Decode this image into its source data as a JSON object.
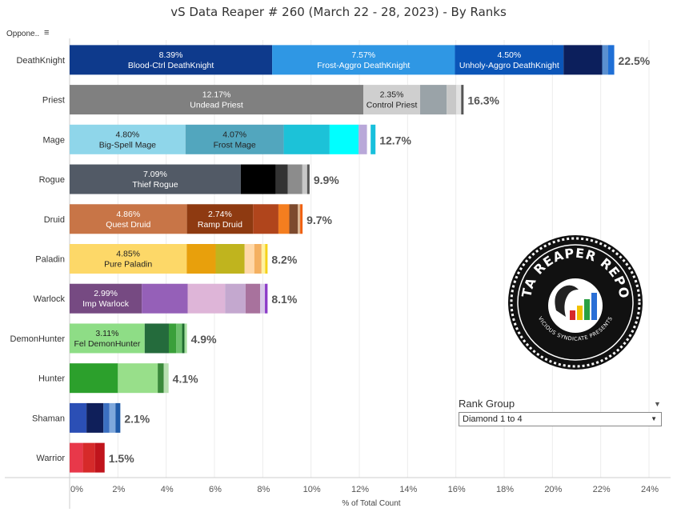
{
  "title": "vS Data Reaper #  260 (March 22 - 28, 2023) - By Ranks",
  "sort_label": "Oppone..",
  "rank_group": {
    "label": "Rank Group",
    "selected": "Diamond 1 to 4"
  },
  "logo": {
    "text": "DATA REAPER REPORT",
    "subtext": "VICIOUS SYNDICATE PRESENTS"
  },
  "chart_data": {
    "type": "bar",
    "orientation": "horizontal",
    "stacked": true,
    "xlabel": "% of Total Count",
    "xlim": [
      0,
      24
    ],
    "xticks": [
      "0%",
      "2%",
      "4%",
      "6%",
      "8%",
      "10%",
      "12%",
      "14%",
      "16%",
      "18%",
      "20%",
      "22%",
      "24%"
    ],
    "grid": true,
    "rows": [
      {
        "class": "DeathKnight",
        "total": "22.5%",
        "segments": [
          {
            "value": 8.39,
            "color": "#0e3a8c",
            "pct": "8.39%",
            "name": "Blood-Ctrl DeathKnight",
            "textColor": "#ffffff"
          },
          {
            "value": 7.57,
            "color": "#2f97e4",
            "pct": "7.57%",
            "name": "Frost-Aggro DeathKnight",
            "textColor": "#ffffff"
          },
          {
            "value": 4.5,
            "color": "#0b55b8",
            "pct": "4.50%",
            "name": "Unholy-Aggro DeathKnight",
            "textColor": "#ffffff"
          },
          {
            "value": 1.6,
            "color": "#0c1f5c"
          },
          {
            "value": 0.25,
            "color": "#5a8fd0"
          },
          {
            "value": 0.25,
            "color": "#1f6fd6"
          }
        ]
      },
      {
        "class": "Priest",
        "total": "16.3%",
        "segments": [
          {
            "value": 12.17,
            "color": "#808080",
            "pct": "12.17%",
            "name": "Undead Priest",
            "textColor": "#ffffff"
          },
          {
            "value": 2.35,
            "color": "#cfcfcf",
            "pct": "2.35%",
            "name": "Control Priest",
            "textColor": "#222222"
          },
          {
            "value": 1.1,
            "color": "#9aa3a8"
          },
          {
            "value": 0.4,
            "color": "#c8c8c8"
          },
          {
            "value": 0.2,
            "color": "#e2e2e2"
          },
          {
            "value": 0.1,
            "color": "#555555"
          }
        ]
      },
      {
        "class": "Mage",
        "total": "12.7%",
        "segments": [
          {
            "value": 4.8,
            "color": "#8fd6ea",
            "pct": "4.80%",
            "name": "Big-Spell Mage",
            "textColor": "#222222"
          },
          {
            "value": 4.07,
            "color": "#52a6be",
            "pct": "4.07%",
            "name": "Frost Mage",
            "textColor": "#222222"
          },
          {
            "value": 1.9,
            "color": "#1cc2d8"
          },
          {
            "value": 1.2,
            "color": "#00ffff"
          },
          {
            "value": 0.35,
            "color": "#b9a8d9"
          },
          {
            "value": 0.15,
            "color": "#ffffff"
          },
          {
            "value": 0.2,
            "color": "#18c0dc"
          }
        ]
      },
      {
        "class": "Rogue",
        "total": "9.9%",
        "segments": [
          {
            "value": 7.09,
            "color": "#525a66",
            "pct": "7.09%",
            "name": "Thief Rogue",
            "textColor": "#ffffff"
          },
          {
            "value": 1.45,
            "color": "#000000"
          },
          {
            "value": 0.5,
            "color": "#333333"
          },
          {
            "value": 0.6,
            "color": "#8c8c8c"
          },
          {
            "value": 0.2,
            "color": "#c7c7c7"
          },
          {
            "value": 0.1,
            "color": "#555555"
          }
        ]
      },
      {
        "class": "Druid",
        "total": "9.7%",
        "segments": [
          {
            "value": 4.86,
            "color": "#c87547",
            "pct": "4.86%",
            "name": "Quest Druid",
            "textColor": "#ffffff"
          },
          {
            "value": 2.74,
            "color": "#8e3a11",
            "pct": "2.74%",
            "name": "Ramp Druid",
            "textColor": "#ffffff"
          },
          {
            "value": 1.05,
            "color": "#b0451c"
          },
          {
            "value": 0.45,
            "color": "#f47e1f"
          },
          {
            "value": 0.35,
            "color": "#7d4a2e"
          },
          {
            "value": 0.1,
            "color": "#d9b28f"
          },
          {
            "value": 0.1,
            "color": "#f06010"
          }
        ]
      },
      {
        "class": "Paladin",
        "total": "8.2%",
        "segments": [
          {
            "value": 4.85,
            "color": "#fdd868",
            "pct": "4.85%",
            "name": "Pure Paladin",
            "textColor": "#222222"
          },
          {
            "value": 1.2,
            "color": "#e8a00c"
          },
          {
            "value": 1.2,
            "color": "#c0b41e"
          },
          {
            "value": 0.4,
            "color": "#ffd8a8"
          },
          {
            "value": 0.3,
            "color": "#f4b060"
          },
          {
            "value": 0.15,
            "color": "#fff2a0"
          },
          {
            "value": 0.1,
            "color": "#f5d21a"
          }
        ]
      },
      {
        "class": "Warlock",
        "total": "8.1%",
        "segments": [
          {
            "value": 2.99,
            "color": "#764a82",
            "pct": "2.99%",
            "name": "Imp Warlock",
            "textColor": "#ffffff"
          },
          {
            "value": 1.9,
            "color": "#9560b8"
          },
          {
            "value": 1.55,
            "color": "#deb5d8"
          },
          {
            "value": 0.85,
            "color": "#c4a8cf"
          },
          {
            "value": 0.6,
            "color": "#a8729d"
          },
          {
            "value": 0.2,
            "color": "#d8c8e8"
          },
          {
            "value": 0.11,
            "color": "#8c3cc8"
          }
        ]
      },
      {
        "class": "DemonHunter",
        "total": "4.9%",
        "segments": [
          {
            "value": 3.11,
            "color": "#8edd86",
            "pct": "3.11%",
            "name": "Fel DemonHunter",
            "textColor": "#222222"
          },
          {
            "value": 1.0,
            "color": "#246b3c"
          },
          {
            "value": 0.3,
            "color": "#3aa03a"
          },
          {
            "value": 0.25,
            "color": "#6cc06c"
          },
          {
            "value": 0.1,
            "color": "#1e6b2e"
          },
          {
            "value": 0.1,
            "color": "#a8e0a0"
          }
        ]
      },
      {
        "class": "Hunter",
        "total": "4.1%",
        "segments": [
          {
            "value": 2.0,
            "color": "#2ca02c"
          },
          {
            "value": 1.65,
            "color": "#98df8a"
          },
          {
            "value": 0.25,
            "color": "#3a8a3a"
          },
          {
            "value": 0.2,
            "color": "#b8e0b0"
          }
        ]
      },
      {
        "class": "Shaman",
        "total": "2.1%",
        "segments": [
          {
            "value": 0.7,
            "color": "#2b4fb5"
          },
          {
            "value": 0.7,
            "color": "#0f1f5a"
          },
          {
            "value": 0.25,
            "color": "#3b6fc0"
          },
          {
            "value": 0.25,
            "color": "#7fa8dc"
          },
          {
            "value": 0.2,
            "color": "#1f5aa8"
          }
        ]
      },
      {
        "class": "Warrior",
        "total": "1.5%",
        "segments": [
          {
            "value": 0.55,
            "color": "#e8384a"
          },
          {
            "value": 0.5,
            "color": "#d62a2a"
          },
          {
            "value": 0.4,
            "color": "#c0141c"
          }
        ]
      }
    ]
  }
}
